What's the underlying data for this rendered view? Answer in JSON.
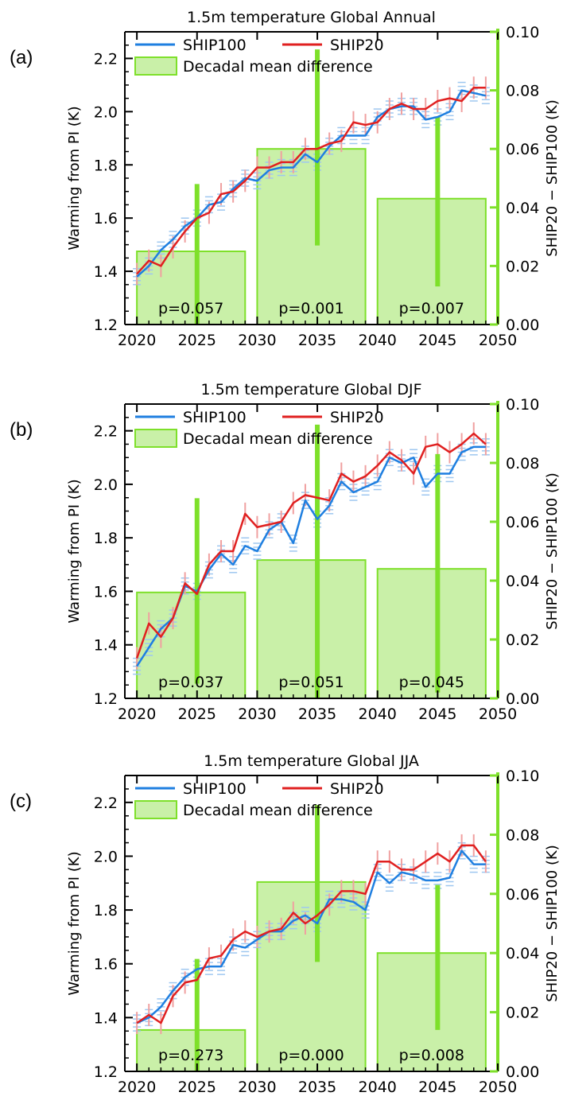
{
  "chart_data": [
    {
      "panel_label": "(a)",
      "type": "line",
      "title": "1.5m temperature Global Annual",
      "ylabel": "Warming from PI (K)",
      "y2label": "SHIP20 − SHIP100 (K)",
      "xlim": [
        2019,
        2050
      ],
      "ylim": [
        1.2,
        2.3
      ],
      "y2lim": [
        0.0,
        0.1
      ],
      "xticks": [
        "2020",
        "2025",
        "2030",
        "2035",
        "2040",
        "2045",
        "2050"
      ],
      "yticks": [
        "1.2",
        "1.4",
        "1.6",
        "1.8",
        "2.0",
        "2.2"
      ],
      "y2ticks": [
        "0.00",
        "0.02",
        "0.04",
        "0.06",
        "0.08",
        "0.10"
      ],
      "legend": {
        "placement": "top-left",
        "entries": [
          "SHIP100",
          "SHIP20",
          "Decadal mean difference"
        ]
      },
      "x": [
        2020,
        2021,
        2022,
        2023,
        2024,
        2025,
        2026,
        2027,
        2028,
        2029,
        2030,
        2031,
        2032,
        2033,
        2034,
        2035,
        2036,
        2037,
        2038,
        2039,
        2040,
        2041,
        2042,
        2043,
        2044,
        2045,
        2046,
        2047,
        2048,
        2049
      ],
      "series": [
        {
          "name": "SHIP100",
          "color": "#1f7fe0",
          "values": [
            1.38,
            1.42,
            1.48,
            1.52,
            1.57,
            1.6,
            1.65,
            1.66,
            1.71,
            1.75,
            1.74,
            1.78,
            1.79,
            1.79,
            1.84,
            1.81,
            1.87,
            1.91,
            1.91,
            1.91,
            1.98,
            2.01,
            2.02,
            2.02,
            1.97,
            1.98,
            2.0,
            2.08,
            2.07,
            2.06
          ]
        },
        {
          "name": "SHIP20",
          "color": "#e02020",
          "values": [
            1.39,
            1.44,
            1.42,
            1.49,
            1.55,
            1.6,
            1.62,
            1.69,
            1.7,
            1.74,
            1.79,
            1.79,
            1.81,
            1.81,
            1.86,
            1.86,
            1.88,
            1.89,
            1.96,
            1.95,
            1.96,
            2.01,
            2.03,
            2.01,
            2.01,
            2.04,
            2.05,
            2.04,
            2.09,
            2.09
          ]
        }
      ],
      "bars": [
        {
          "x0": 2020,
          "x1": 2029,
          "value": 0.025,
          "err_low": 0.0,
          "err_high": 0.048,
          "label": "p=0.057"
        },
        {
          "x0": 2030,
          "x1": 2039,
          "value": 0.06,
          "err_low": 0.027,
          "err_high": 0.094,
          "label": "p=0.001"
        },
        {
          "x0": 2040,
          "x1": 2049,
          "value": 0.043,
          "err_low": 0.013,
          "err_high": 0.071,
          "label": "p=0.007"
        }
      ]
    },
    {
      "panel_label": "(b)",
      "type": "line",
      "title": "1.5m temperature Global DJF",
      "ylabel": "Warming from PI (K)",
      "y2label": "SHIP20 − SHIP100 (K)",
      "xlim": [
        2019,
        2050
      ],
      "ylim": [
        1.2,
        2.3
      ],
      "y2lim": [
        0.0,
        0.1
      ],
      "xticks": [
        "2020",
        "2025",
        "2030",
        "2035",
        "2040",
        "2045",
        "2050"
      ],
      "yticks": [
        "1.2",
        "1.4",
        "1.6",
        "1.8",
        "2.0",
        "2.2"
      ],
      "y2ticks": [
        "0.00",
        "0.02",
        "0.04",
        "0.06",
        "0.08",
        "0.10"
      ],
      "legend": {
        "placement": "top-left",
        "entries": [
          "SHIP100",
          "SHIP20",
          "Decadal mean difference"
        ]
      },
      "x": [
        2020,
        2021,
        2022,
        2023,
        2024,
        2025,
        2026,
        2027,
        2028,
        2029,
        2030,
        2031,
        2032,
        2033,
        2034,
        2035,
        2036,
        2037,
        2038,
        2039,
        2040,
        2041,
        2042,
        2043,
        2044,
        2045,
        2046,
        2047,
        2048,
        2049
      ],
      "series": [
        {
          "name": "SHIP100",
          "color": "#1f7fe0",
          "values": [
            1.32,
            1.39,
            1.46,
            1.5,
            1.62,
            1.6,
            1.68,
            1.74,
            1.7,
            1.77,
            1.75,
            1.83,
            1.86,
            1.78,
            1.94,
            1.87,
            1.92,
            2.01,
            1.97,
            1.99,
            2.01,
            2.1,
            2.08,
            2.1,
            1.99,
            2.04,
            2.04,
            2.12,
            2.14,
            2.14
          ]
        },
        {
          "name": "SHIP20",
          "color": "#e02020",
          "values": [
            1.35,
            1.48,
            1.43,
            1.5,
            1.63,
            1.59,
            1.7,
            1.75,
            1.75,
            1.89,
            1.84,
            1.85,
            1.86,
            1.93,
            1.96,
            1.95,
            1.94,
            2.04,
            2.01,
            2.03,
            2.07,
            2.12,
            2.09,
            2.04,
            2.14,
            2.15,
            2.12,
            2.15,
            2.19,
            2.15
          ]
        }
      ],
      "bars": [
        {
          "x0": 2020,
          "x1": 2029,
          "value": 0.036,
          "err_low": 0.005,
          "err_high": 0.068,
          "label": "p=0.037"
        },
        {
          "x0": 2030,
          "x1": 2039,
          "value": 0.047,
          "err_low": 0.0,
          "err_high": 0.093,
          "label": "p=0.051"
        },
        {
          "x0": 2040,
          "x1": 2049,
          "value": 0.044,
          "err_low": 0.002,
          "err_high": 0.083,
          "label": "p=0.045"
        }
      ]
    },
    {
      "panel_label": "(c)",
      "type": "line",
      "title": "1.5m temperature Global JJA",
      "ylabel": "Warming from PI (K)",
      "y2label": "SHIP20 − SHIP100 (K)",
      "xlim": [
        2019,
        2050
      ],
      "ylim": [
        1.2,
        2.3
      ],
      "y2lim": [
        0.0,
        0.1
      ],
      "xticks": [
        "2020",
        "2025",
        "2030",
        "2035",
        "2040",
        "2045",
        "2050"
      ],
      "yticks": [
        "1.2",
        "1.4",
        "1.6",
        "1.8",
        "2.0",
        "2.2"
      ],
      "y2ticks": [
        "0.00",
        "0.02",
        "0.04",
        "0.06",
        "0.08",
        "0.10"
      ],
      "legend": {
        "placement": "top-left",
        "entries": [
          "SHIP100",
          "SHIP20",
          "Decadal mean difference"
        ]
      },
      "x": [
        2020,
        2021,
        2022,
        2023,
        2024,
        2025,
        2026,
        2027,
        2028,
        2029,
        2030,
        2031,
        2032,
        2033,
        2034,
        2035,
        2036,
        2037,
        2038,
        2039,
        2040,
        2041,
        2042,
        2043,
        2044,
        2045,
        2046,
        2047,
        2048,
        2049
      ],
      "series": [
        {
          "name": "SHIP100",
          "color": "#1f7fe0",
          "values": [
            1.38,
            1.4,
            1.44,
            1.5,
            1.55,
            1.58,
            1.59,
            1.59,
            1.67,
            1.66,
            1.69,
            1.72,
            1.72,
            1.76,
            1.78,
            1.75,
            1.84,
            1.84,
            1.83,
            1.8,
            1.94,
            1.9,
            1.94,
            1.93,
            1.91,
            1.91,
            1.92,
            2.02,
            1.97,
            1.97
          ]
        },
        {
          "name": "SHIP20",
          "color": "#e02020",
          "values": [
            1.38,
            1.41,
            1.38,
            1.48,
            1.53,
            1.54,
            1.62,
            1.63,
            1.69,
            1.72,
            1.7,
            1.72,
            1.73,
            1.79,
            1.75,
            1.78,
            1.82,
            1.87,
            1.87,
            1.86,
            1.98,
            1.98,
            1.95,
            1.95,
            1.98,
            2.01,
            1.98,
            2.04,
            2.04,
            1.98
          ]
        }
      ],
      "bars": [
        {
          "x0": 2020,
          "x1": 2029,
          "value": 0.014,
          "err_low": 0.0,
          "err_high": 0.038,
          "label": "p=0.273"
        },
        {
          "x0": 2030,
          "x1": 2039,
          "value": 0.064,
          "err_low": 0.037,
          "err_high": 0.09,
          "label": "p=0.000"
        },
        {
          "x0": 2040,
          "x1": 2049,
          "value": 0.04,
          "err_low": 0.014,
          "err_high": 0.063,
          "label": "p=0.008"
        }
      ]
    }
  ],
  "colors": {
    "axis": "#000000",
    "right_axis": "#7ee02a",
    "bar_fill": "#c9f0a8",
    "bar_edge": "#7ee02a",
    "err_bar": "#7ee02a",
    "ship100": "#1f7fe0",
    "ship20": "#e02020",
    "ship100_spread": "#9ec7f0",
    "ship20_spread": "#f0a0a0"
  }
}
